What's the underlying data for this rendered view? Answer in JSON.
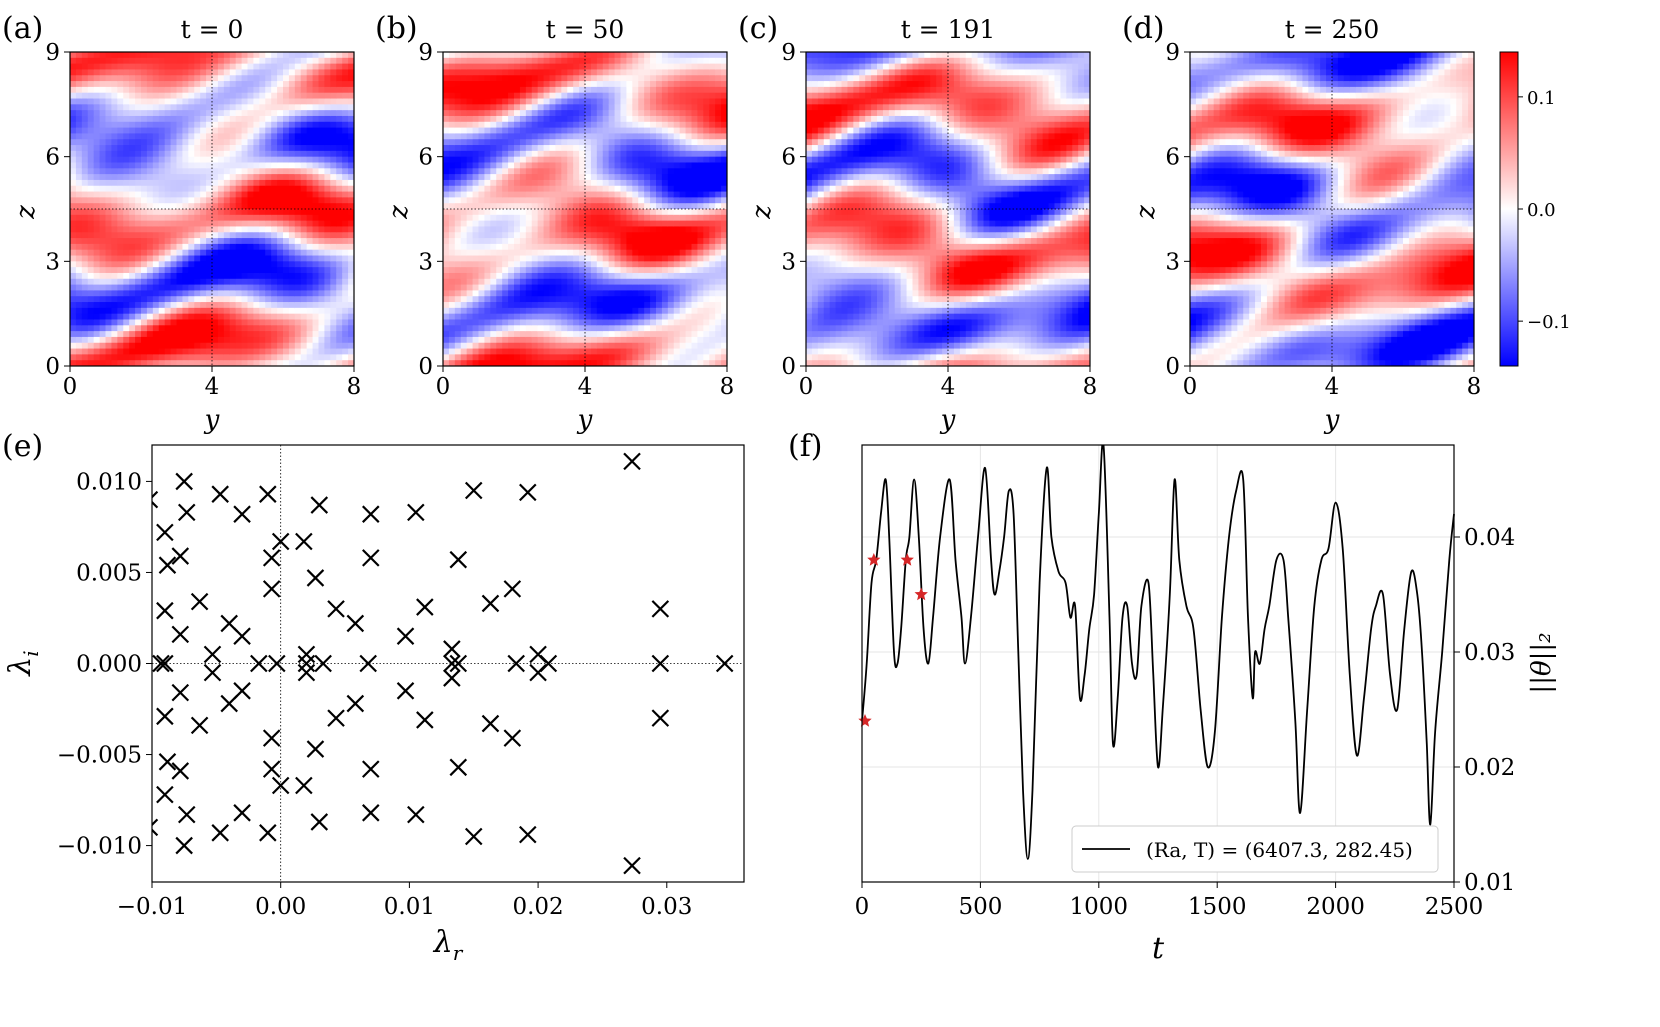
{
  "panels_top": [
    {
      "label": "(a)",
      "title": "t = 0",
      "seed": 1
    },
    {
      "label": "(b)",
      "title": "t = 50",
      "seed": 2
    },
    {
      "label": "(c)",
      "title": "t = 191",
      "seed": 3
    },
    {
      "label": "(d)",
      "title": "t = 250",
      "seed": 4
    }
  ],
  "top_axes": {
    "xlabel": "y",
    "ylabel": "z",
    "xticks": [
      "0",
      "4",
      "8"
    ],
    "yticks": [
      "0",
      "3",
      "6",
      "9"
    ]
  },
  "colorbar": {
    "ticks": [
      "0.1",
      "0.0",
      "−0.1"
    ],
    "colors": {
      "positive": "#ff0000",
      "zero": "#ffffff",
      "negative": "#0000ff"
    },
    "vmin": -0.14,
    "vmax": 0.14
  },
  "panel_e": {
    "label": "(e)",
    "xlabel": "λ",
    "xlabel_sub": "r",
    "ylabel": "λ",
    "ylabel_sub": "i"
  },
  "panel_f": {
    "label": "(f)",
    "xlabel": "t",
    "ylabel": "||θ||₂",
    "legend": "(Ra, T) = (6407.3, 282.45)"
  },
  "chart_data": [
    {
      "type": "scatter",
      "title": "",
      "xlabel": "λr",
      "ylabel": "λi",
      "xlim": [
        -0.01,
        0.036
      ],
      "ylim": [
        -0.012,
        0.012
      ],
      "xticks": [
        "−0.01",
        "0.00",
        "0.01",
        "0.02",
        "0.03"
      ],
      "xtick_values": [
        -0.01,
        0.0,
        0.01,
        0.02,
        0.03
      ],
      "yticks": [
        "0.010",
        "0.005",
        "0.000",
        "−0.005",
        "−0.010"
      ],
      "ytick_values": [
        0.01,
        0.005,
        0.0,
        -0.005,
        -0.01
      ],
      "marker": "x",
      "points": [
        [
          -0.0102,
          0.009
        ],
        [
          -0.0102,
          -0.009
        ],
        [
          -0.009,
          0.0072
        ],
        [
          -0.009,
          -0.0072
        ],
        [
          -0.0088,
          0.0054
        ],
        [
          -0.0088,
          -0.0054
        ],
        [
          -0.0075,
          0.01
        ],
        [
          -0.0075,
          -0.01
        ],
        [
          -0.0073,
          0.0083
        ],
        [
          -0.0073,
          -0.0083
        ],
        [
          -0.0078,
          0.0059
        ],
        [
          -0.0078,
          -0.0059
        ],
        [
          -0.009,
          0.0029
        ],
        [
          -0.009,
          -0.0029
        ],
        [
          -0.0063,
          0.0034
        ],
        [
          -0.0063,
          -0.0034
        ],
        [
          -0.0078,
          0.0016
        ],
        [
          -0.0078,
          -0.0016
        ],
        [
          -0.0093,
          0.0
        ],
        [
          -0.009,
          0.0
        ],
        [
          -0.0053,
          0.0005
        ],
        [
          -0.0053,
          -0.0005
        ],
        [
          -0.0047,
          0.0093
        ],
        [
          -0.0047,
          -0.0093
        ],
        [
          -0.003,
          0.0082
        ],
        [
          -0.003,
          -0.0082
        ],
        [
          -0.004,
          0.0022
        ],
        [
          -0.004,
          -0.0022
        ],
        [
          -0.003,
          0.0015
        ],
        [
          -0.003,
          -0.0015
        ],
        [
          -0.0017,
          0.0
        ],
        [
          -0.001,
          0.0093
        ],
        [
          -0.001,
          -0.0093
        ],
        [
          -0.0007,
          0.0058
        ],
        [
          -0.0007,
          -0.0058
        ],
        [
          -0.0007,
          0.0041
        ],
        [
          -0.0007,
          -0.0041
        ],
        [
          -0.0003,
          0.0
        ],
        [
          0.0,
          0.0067
        ],
        [
          0.0,
          -0.0067
        ],
        [
          0.0018,
          0.0067
        ],
        [
          0.0018,
          -0.0067
        ],
        [
          0.002,
          0.0005
        ],
        [
          0.002,
          -0.0005
        ],
        [
          0.002,
          0.0
        ],
        [
          0.0027,
          0.0047
        ],
        [
          0.0027,
          -0.0047
        ],
        [
          0.003,
          0.0087
        ],
        [
          0.003,
          -0.0087
        ],
        [
          0.0033,
          0.0
        ],
        [
          0.0043,
          0.003
        ],
        [
          0.0043,
          -0.003
        ],
        [
          0.0058,
          0.0022
        ],
        [
          0.0058,
          -0.0022
        ],
        [
          0.0068,
          0.0
        ],
        [
          0.007,
          0.0082
        ],
        [
          0.007,
          -0.0082
        ],
        [
          0.007,
          0.0058
        ],
        [
          0.007,
          -0.0058
        ],
        [
          0.0097,
          0.0015
        ],
        [
          0.0097,
          -0.0015
        ],
        [
          0.0105,
          0.0083
        ],
        [
          0.0105,
          -0.0083
        ],
        [
          0.0112,
          0.0031
        ],
        [
          0.0112,
          -0.0031
        ],
        [
          0.0133,
          0.0008
        ],
        [
          0.0133,
          -0.0008
        ],
        [
          0.0133,
          0.0
        ],
        [
          0.0138,
          0.0
        ],
        [
          0.0138,
          0.0057
        ],
        [
          0.0138,
          -0.0057
        ],
        [
          0.015,
          0.0095
        ],
        [
          0.015,
          -0.0095
        ],
        [
          0.0163,
          0.0033
        ],
        [
          0.0163,
          -0.0033
        ],
        [
          0.018,
          0.0041
        ],
        [
          0.018,
          -0.0041
        ],
        [
          0.0183,
          0.0
        ],
        [
          0.0192,
          0.0094
        ],
        [
          0.0192,
          -0.0094
        ],
        [
          0.02,
          0.0005
        ],
        [
          0.02,
          -0.0005
        ],
        [
          0.0208,
          0.0
        ],
        [
          0.0273,
          0.0111
        ],
        [
          0.0273,
          -0.0111
        ],
        [
          0.0295,
          0.003
        ],
        [
          0.0295,
          -0.003
        ],
        [
          0.0295,
          0.0
        ],
        [
          0.0345,
          0.0
        ]
      ]
    },
    {
      "type": "line",
      "title": "",
      "xlabel": "t",
      "ylabel": "||θ||₂",
      "xlim": [
        0,
        2500
      ],
      "ylim": [
        0.01,
        0.048
      ],
      "xticks": [
        "0",
        "500",
        "1000",
        "1500",
        "2000",
        "2500"
      ],
      "xtick_values": [
        0,
        500,
        1000,
        1500,
        2000,
        2500
      ],
      "yticks": [
        "0.04",
        "0.03",
        "0.02",
        "0.01"
      ],
      "ytick_values": [
        0.04,
        0.03,
        0.02,
        0.01
      ],
      "series": [
        {
          "name": "(Ra, T) = (6407.3, 282.45)",
          "points": [
            [
              0,
              0.024
            ],
            [
              20,
              0.029
            ],
            [
              40,
              0.036
            ],
            [
              60,
              0.038
            ],
            [
              80,
              0.042
            ],
            [
              100,
              0.045
            ],
            [
              115,
              0.04
            ],
            [
              135,
              0.03
            ],
            [
              150,
              0.029
            ],
            [
              165,
              0.032
            ],
            [
              185,
              0.038
            ],
            [
              200,
              0.04
            ],
            [
              220,
              0.045
            ],
            [
              240,
              0.04
            ],
            [
              260,
              0.032
            ],
            [
              280,
              0.029
            ],
            [
              300,
              0.033
            ],
            [
              330,
              0.04
            ],
            [
              370,
              0.045
            ],
            [
              395,
              0.038
            ],
            [
              420,
              0.033
            ],
            [
              435,
              0.029
            ],
            [
              460,
              0.033
            ],
            [
              490,
              0.04
            ],
            [
              520,
              0.046
            ],
            [
              545,
              0.038
            ],
            [
              560,
              0.035
            ],
            [
              580,
              0.037
            ],
            [
              600,
              0.04
            ],
            [
              620,
              0.044
            ],
            [
              640,
              0.042
            ],
            [
              660,
              0.03
            ],
            [
              680,
              0.018
            ],
            [
              700,
              0.012
            ],
            [
              720,
              0.018
            ],
            [
              750,
              0.036
            ],
            [
              780,
              0.046
            ],
            [
              800,
              0.04
            ],
            [
              830,
              0.037
            ],
            [
              860,
              0.036
            ],
            [
              880,
              0.033
            ],
            [
              900,
              0.034
            ],
            [
              920,
              0.026
            ],
            [
              940,
              0.028
            ],
            [
              960,
              0.032
            ],
            [
              980,
              0.035
            ],
            [
              1000,
              0.042
            ],
            [
              1020,
              0.048
            ],
            [
              1045,
              0.033
            ],
            [
              1060,
              0.022
            ],
            [
              1080,
              0.026
            ],
            [
              1100,
              0.033
            ],
            [
              1120,
              0.034
            ],
            [
              1140,
              0.029
            ],
            [
              1160,
              0.028
            ],
            [
              1180,
              0.034
            ],
            [
              1210,
              0.036
            ],
            [
              1230,
              0.028
            ],
            [
              1250,
              0.02
            ],
            [
              1270,
              0.025
            ],
            [
              1300,
              0.035
            ],
            [
              1320,
              0.045
            ],
            [
              1340,
              0.038
            ],
            [
              1370,
              0.034
            ],
            [
              1400,
              0.032
            ],
            [
              1430,
              0.025
            ],
            [
              1460,
              0.02
            ],
            [
              1490,
              0.023
            ],
            [
              1520,
              0.033
            ],
            [
              1550,
              0.04
            ],
            [
              1580,
              0.044
            ],
            [
              1610,
              0.045
            ],
            [
              1630,
              0.033
            ],
            [
              1650,
              0.026
            ],
            [
              1660,
              0.03
            ],
            [
              1680,
              0.029
            ],
            [
              1700,
              0.032
            ],
            [
              1720,
              0.034
            ],
            [
              1750,
              0.038
            ],
            [
              1780,
              0.038
            ],
            [
              1800,
              0.033
            ],
            [
              1830,
              0.024
            ],
            [
              1850,
              0.016
            ],
            [
              1880,
              0.025
            ],
            [
              1910,
              0.034
            ],
            [
              1940,
              0.038
            ],
            [
              1970,
              0.039
            ],
            [
              2000,
              0.043
            ],
            [
              2030,
              0.039
            ],
            [
              2060,
              0.028
            ],
            [
              2090,
              0.021
            ],
            [
              2120,
              0.026
            ],
            [
              2150,
              0.032
            ],
            [
              2170,
              0.034
            ],
            [
              2200,
              0.035
            ],
            [
              2230,
              0.028
            ],
            [
              2260,
              0.025
            ],
            [
              2290,
              0.032
            ],
            [
              2320,
              0.037
            ],
            [
              2345,
              0.035
            ],
            [
              2365,
              0.03
            ],
            [
              2385,
              0.022
            ],
            [
              2400,
              0.015
            ],
            [
              2420,
              0.023
            ],
            [
              2450,
              0.03
            ],
            [
              2480,
              0.038
            ],
            [
              2500,
              0.042
            ]
          ]
        },
        {
          "name": "markers",
          "marker": "star",
          "color": "#d62728",
          "points": [
            [
              0,
              0.024
            ],
            [
              50,
              0.038
            ],
            [
              191,
              0.038
            ],
            [
              250,
              0.035
            ]
          ]
        }
      ]
    }
  ]
}
